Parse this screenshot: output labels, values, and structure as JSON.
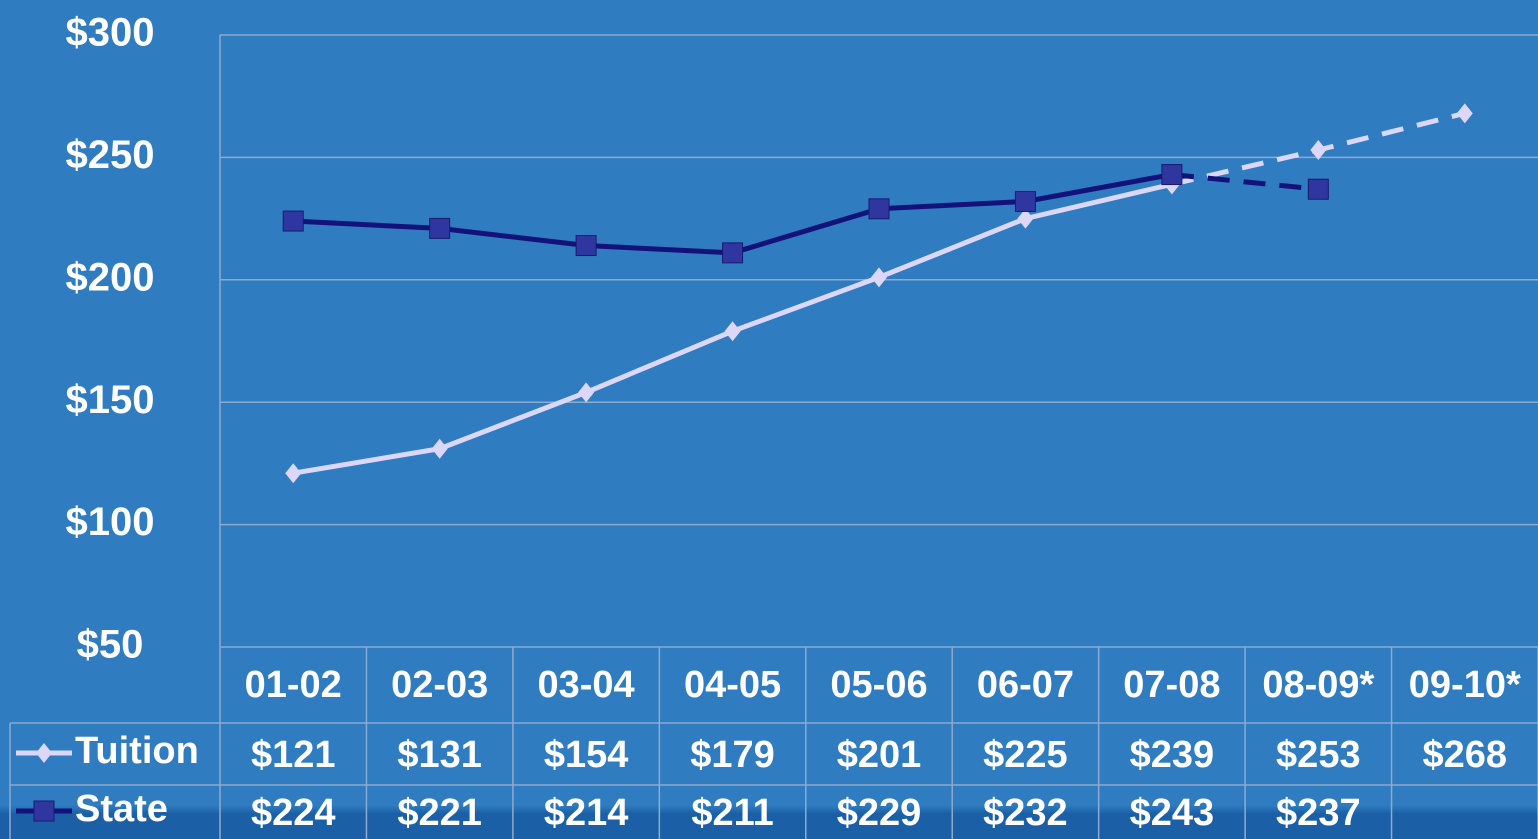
{
  "chart_data": {
    "type": "line",
    "categories": [
      "01-02",
      "02-03",
      "03-04",
      "04-05",
      "05-06",
      "06-07",
      "07-08",
      "08-09*",
      "09-10*"
    ],
    "series": [
      {
        "name": "Tuition",
        "color": "#dcd6f7",
        "marker": "diamond",
        "values": [
          121,
          131,
          154,
          179,
          201,
          225,
          239,
          253,
          268
        ],
        "value_labels": [
          "$121",
          "$131",
          "$154",
          "$179",
          "$201",
          "$225",
          "$239",
          "$253",
          "$268"
        ]
      },
      {
        "name": "State",
        "color": "#12127a",
        "marker": "square",
        "values": [
          224,
          221,
          214,
          211,
          229,
          232,
          243,
          237,
          null
        ],
        "value_labels": [
          "$224",
          "$221",
          "$214",
          "$211",
          "$229",
          "$232",
          "$243",
          "$237",
          null
        ]
      }
    ],
    "ylim": [
      50,
      300
    ],
    "yticks": [
      {
        "value": 50,
        "label": "$50"
      },
      {
        "value": 100,
        "label": "$100"
      },
      {
        "value": 150,
        "label": "$150"
      },
      {
        "value": 200,
        "label": "$200"
      },
      {
        "value": 250,
        "label": "$250"
      },
      {
        "value": 300,
        "label": "$300"
      }
    ],
    "grid": true
  }
}
